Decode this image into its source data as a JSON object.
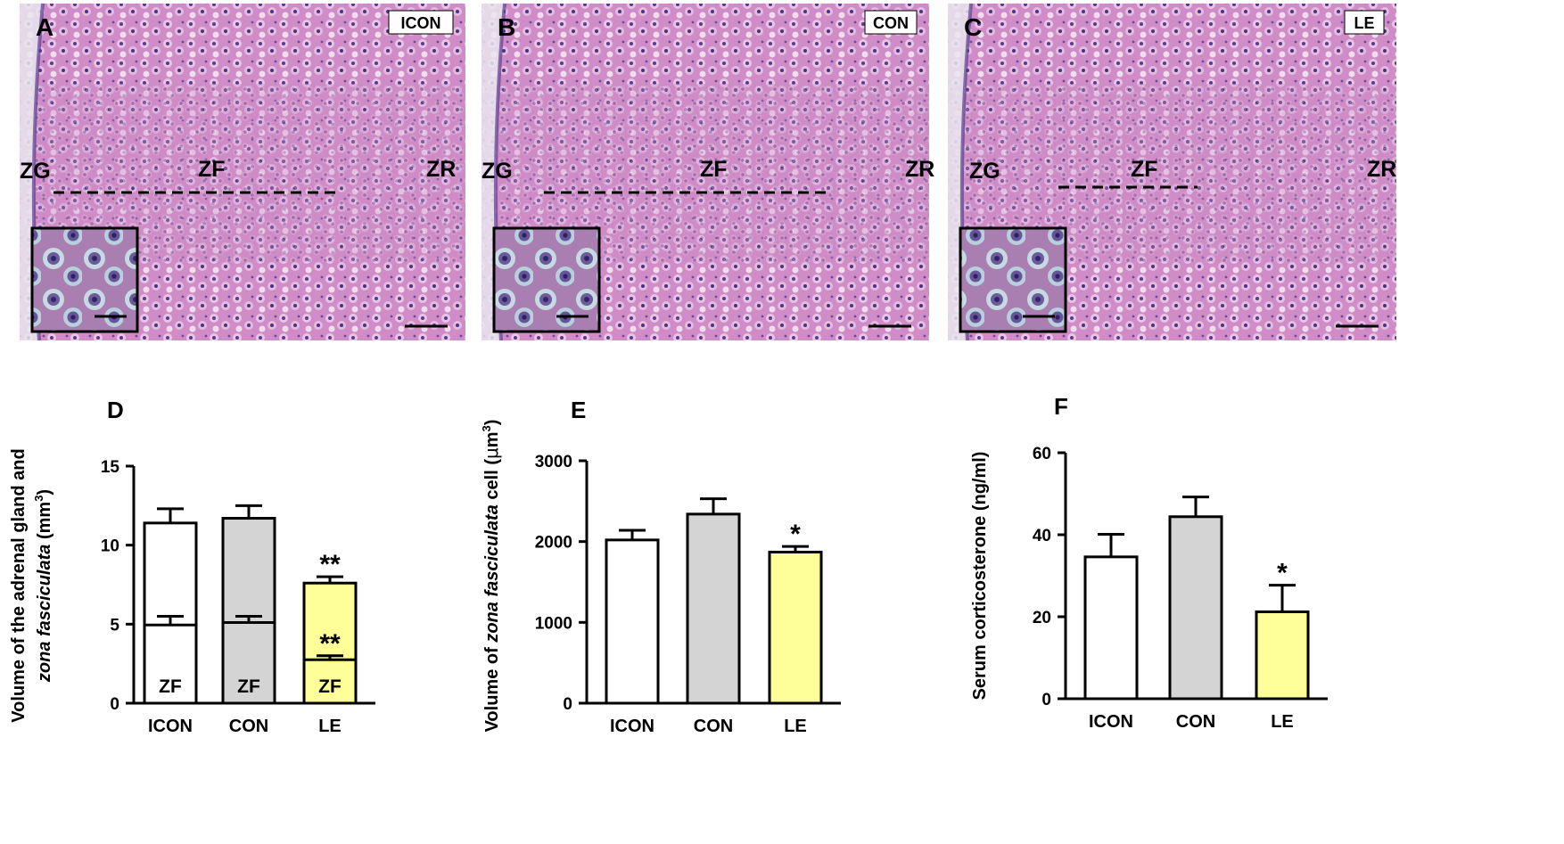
{
  "histology": {
    "panels": [
      {
        "letter": "A",
        "group": "ICON",
        "zones": [
          "ZG",
          "ZF",
          "ZR"
        ]
      },
      {
        "letter": "B",
        "group": "CON",
        "zones": [
          "ZG",
          "ZF",
          "ZR"
        ]
      },
      {
        "letter": "C",
        "group": "LE",
        "zones": [
          "ZG",
          "ZF",
          "ZR"
        ]
      }
    ]
  },
  "colors": {
    "icon_bar": "#ffffff",
    "con_bar": "#d4d4d4",
    "le_bar": "#ffff99",
    "stain_pink": "#c77bb8",
    "nucleus_purple": "#5a3a8c"
  },
  "chart_data": [
    {
      "panel": "D",
      "type": "bar",
      "categories": [
        "ICON",
        "CON",
        "LE"
      ],
      "series": [
        {
          "name": "",
          "values": [
            11.4,
            11.7,
            7.6
          ],
          "errors": [
            0.9,
            0.8,
            0.4
          ]
        },
        {
          "name": "ZF",
          "values": [
            4.95,
            5.1,
            2.75
          ],
          "errors": [
            0.55,
            0.4,
            0.25
          ]
        }
      ],
      "annotations": [
        {
          "category": "LE",
          "series": 0,
          "text": "**"
        },
        {
          "category": "LE",
          "series": 1,
          "text": "**"
        }
      ],
      "bar_labels": [
        "ZF",
        "ZF",
        "ZF"
      ],
      "ylabel_line1": "Volume of the adrenal gland and",
      "ylabel_line2_italic": "zona fasciculata",
      "ylabel_line2_unit": " (mm",
      "ylabel_line2_sup": "3",
      "ylabel_line2_close": ")",
      "ylim": [
        0,
        15
      ],
      "yticks": [
        "0",
        "5",
        "10",
        "15"
      ]
    },
    {
      "panel": "E",
      "type": "bar",
      "categories": [
        "ICON",
        "CON",
        "LE"
      ],
      "series": [
        {
          "name": "",
          "values": [
            2020,
            2340,
            1870
          ],
          "errors": [
            120,
            190,
            70
          ]
        }
      ],
      "annotations": [
        {
          "category": "LE",
          "series": 0,
          "text": "*"
        }
      ],
      "ylabel_pre": "Volume of ",
      "ylabel_italic": "zona fasciculata",
      "ylabel_post": " cell (",
      "ylabel_mu": "μ",
      "ylabel_unit": "m",
      "ylabel_sup": "3",
      "ylabel_close": ")",
      "ylim": [
        0,
        3000
      ],
      "yticks": [
        "0",
        "1000",
        "2000",
        "3000"
      ]
    },
    {
      "panel": "F",
      "type": "bar",
      "categories": [
        "ICON",
        "CON",
        "LE"
      ],
      "series": [
        {
          "name": "",
          "values": [
            34.6,
            44.4,
            21.2
          ],
          "errors": [
            5.5,
            4.8,
            6.5
          ]
        }
      ],
      "annotations": [
        {
          "category": "LE",
          "series": 0,
          "text": "*"
        }
      ],
      "ylabel": "Serum corticosterone (ng/ml)",
      "ylim": [
        0,
        60
      ],
      "yticks": [
        "0",
        "20",
        "40",
        "60"
      ]
    }
  ]
}
